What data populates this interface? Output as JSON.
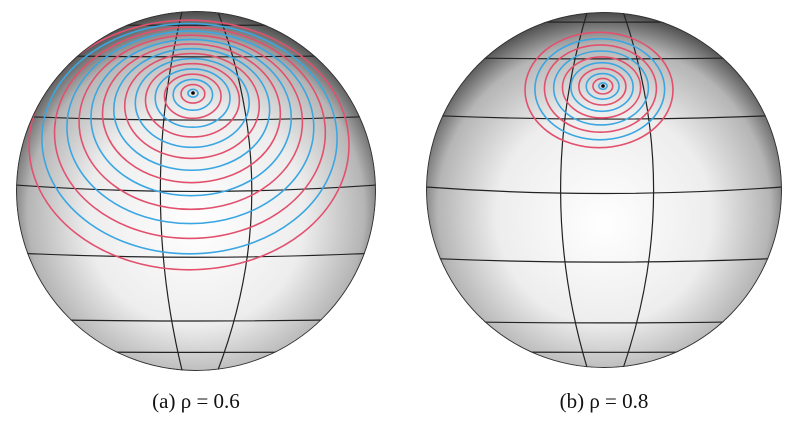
{
  "figures": [
    {
      "caption": "(a) ρ = 0.6"
    },
    {
      "caption": "(b) ρ = 0.8"
    }
  ]
}
